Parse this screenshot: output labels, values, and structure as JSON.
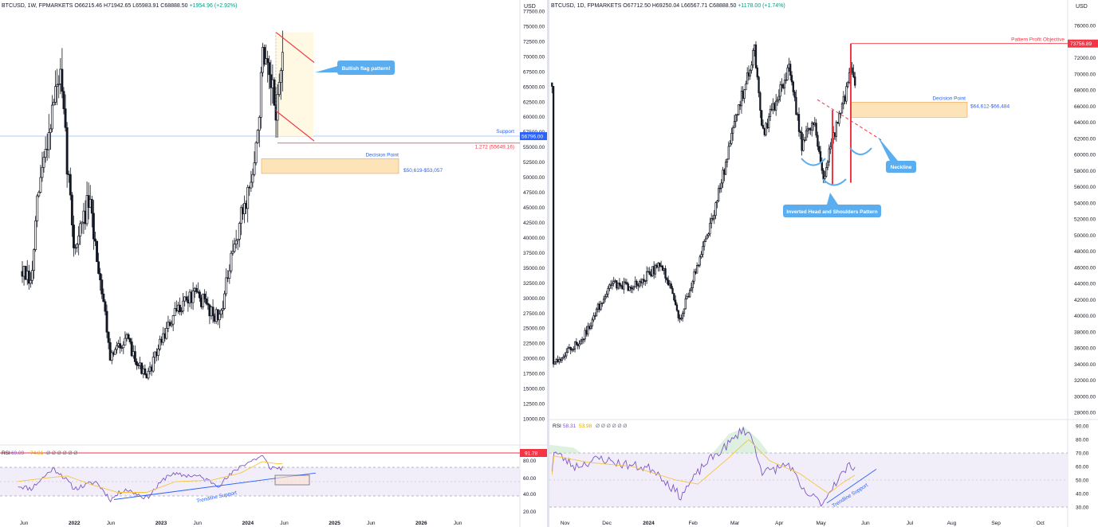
{
  "left": {
    "header": {
      "symbol": "BTCUSD, 1W, FPMARKETS",
      "open": "O66215.46",
      "high": "H71942.65",
      "low": "L65983.91",
      "close": "C68888.50",
      "change": "+1954.96 (+2.92%)"
    },
    "currency": "USD",
    "price_ticks": [
      77500,
      75000,
      72500,
      70000,
      67500,
      65000,
      62500,
      60000,
      57500,
      55000,
      52500,
      50000,
      47500,
      45000,
      42500,
      40000,
      37500,
      35000,
      32500,
      30000,
      27500,
      25000,
      22500,
      20000,
      17500,
      15000,
      12500,
      10000
    ],
    "price_tick_labels": [
      "77500.00",
      "75000.00",
      "72500.00",
      "70000.00",
      "67500.00",
      "65000.00",
      "62500.00",
      "60000.00",
      "57500.00",
      "55000.00",
      "52500.00",
      "50000.00",
      "47500.00",
      "45000.00",
      "42500.00",
      "40000.00",
      "37500.00",
      "35000.00",
      "32500.00",
      "30000.00",
      "27500.00",
      "25000.00",
      "22500.00",
      "20000.00",
      "17500.00",
      "15000.00",
      "12500.00",
      "10000.00"
    ],
    "x_labels": [
      "Jun",
      "2022",
      "Jun",
      "2023",
      "Jun",
      "2024",
      "Jun",
      "2025",
      "Jun",
      "2026",
      "Jun"
    ],
    "annotations": {
      "callout": "Bullish flag pattern!",
      "support_label": "Support",
      "support_price": "56796.00",
      "fib_label": "1.272 (55649.16)",
      "decision_label": "Decision Point",
      "decision_range": "$50,619-$53,057"
    },
    "rsi": {
      "header_label": "RSI",
      "header_rsi": "69.09",
      "header_ma": "74.81",
      "header_extra": "Ø Ø Ø Ø Ø Ø",
      "current_value": "91.78",
      "ticks": [
        80,
        60,
        40,
        20
      ],
      "tick_labels": [
        "80.00",
        "60.00",
        "40.00",
        "20.00"
      ],
      "trendline_label": "Trendline Support"
    }
  },
  "right": {
    "header": {
      "symbol": "BTCUSD, 1D, FPMARKETS",
      "open": "O67712.50",
      "high": "H69250.04",
      "low": "L66567.71",
      "close": "C68888.50",
      "change": "+1178.00 (+1.74%)"
    },
    "currency": "USD",
    "price_ticks": [
      76000,
      74000,
      72000,
      70000,
      68000,
      66000,
      64000,
      62000,
      60000,
      58000,
      56000,
      54000,
      52000,
      50000,
      48000,
      46000,
      44000,
      42000,
      40000,
      38000,
      36000,
      34000,
      32000,
      30000,
      28000
    ],
    "price_tick_labels": [
      "76000.00",
      "74000.00",
      "72000.00",
      "70000.00",
      "68000.00",
      "66000.00",
      "64000.00",
      "62000.00",
      "60000.00",
      "58000.00",
      "56000.00",
      "54000.00",
      "52000.00",
      "50000.00",
      "48000.00",
      "46000.00",
      "44000.00",
      "42000.00",
      "40000.00",
      "38000.00",
      "36000.00",
      "34000.00",
      "32000.00",
      "30000.00",
      "28000.00"
    ],
    "x_labels": [
      "Nov",
      "Dec",
      "2024",
      "Feb",
      "Mar",
      "Apr",
      "May",
      "Jun",
      "Jul",
      "Aug",
      "Sep",
      "Oct"
    ],
    "annotations": {
      "objective_label": "Pattern Profit Objective",
      "objective_price": "73756.89",
      "decision_label": "Decision Point",
      "decision_range": "$64,612-$66,484",
      "neckline": "Neckline",
      "pattern": "Inverted Head and Shoulders Pattern"
    },
    "rsi": {
      "header_label": "RSI",
      "header_rsi": "58.31",
      "header_ma": "53.98",
      "header_extra": "Ø Ø Ø Ø Ø Ø",
      "ticks": [
        90,
        80,
        70,
        60,
        50,
        40,
        30
      ],
      "tick_labels": [
        "90.00",
        "80.00",
        "70.00",
        "60.00",
        "50.00",
        "40.00",
        "30.00"
      ],
      "trendline_label": "Trendline Support"
    }
  },
  "colors": {
    "bull": "#131722",
    "bear": "#131722",
    "red": "#f23645",
    "blue_callout": "#5aaef0",
    "rsi_line": "#7e57c2",
    "rsi_ma": "#f5c542",
    "zone_fill": "#fde4b8",
    "zone_stroke": "#f0a04b",
    "label_blue": "#2962ff"
  },
  "chart_data": [
    {
      "type": "candlestick",
      "title": "",
      "timeframe": "1W",
      "ylim": [
        10000,
        77500
      ],
      "x_labels": [
        "Jun",
        "2022",
        "Jun",
        "2023",
        "Jun",
        "2024",
        "Jun",
        "2025",
        "Jun",
        "2026",
        "Jun"
      ],
      "path_close": [
        [
          "2021-05",
          36000
        ],
        [
          "2021-07",
          32000
        ],
        [
          "2021-08",
          47000
        ],
        [
          "2021-10",
          62000
        ],
        [
          "2021-11",
          67000
        ],
        [
          "2022-01",
          38000
        ],
        [
          "2022-03",
          46000
        ],
        [
          "2022-05",
          30000
        ],
        [
          "2022-06",
          20000
        ],
        [
          "2022-08",
          23500
        ],
        [
          "2022-11",
          16500
        ],
        [
          "2023-01",
          23000
        ],
        [
          "2023-04",
          29500
        ],
        [
          "2023-06",
          30500
        ],
        [
          "2023-09",
          26500
        ],
        [
          "2023-12",
          43000
        ],
        [
          "2024-02",
          52000
        ],
        [
          "2024-03",
          69000
        ],
        [
          "2024-05",
          61000
        ],
        [
          "2024-05-20",
          68888.5
        ]
      ],
      "levels": {
        "support": 56796.0,
        "fib_1_272": 55649.16,
        "decision_zone": [
          50619,
          53057
        ]
      },
      "rsi": {
        "last": 69.09,
        "ma": 74.81,
        "level_line": 91.78
      }
    },
    {
      "type": "candlestick",
      "title": "",
      "timeframe": "1D",
      "ylim": [
        28000,
        76000
      ],
      "x_labels": [
        "Nov",
        "Dec",
        "2024",
        "Feb",
        "Mar",
        "Apr",
        "May",
        "Jun",
        "Jul",
        "Aug",
        "Sep",
        "Oct"
      ],
      "path_close": [
        [
          "2023-10-25",
          34000
        ],
        [
          "2023-11-15",
          37000
        ],
        [
          "2023-12-05",
          44000
        ],
        [
          "2023-12-20",
          43500
        ],
        [
          "2024-01-10",
          46500
        ],
        [
          "2024-01-23",
          39500
        ],
        [
          "2024-02-15",
          52000
        ],
        [
          "2024-03-05",
          67000
        ],
        [
          "2024-03-14",
          73000
        ],
        [
          "2024-03-20",
          62500
        ],
        [
          "2024-04-08",
          71000
        ],
        [
          "2024-04-17",
          61000
        ],
        [
          "2024-04-25",
          64500
        ],
        [
          "2024-05-01",
          57000
        ],
        [
          "2024-05-08",
          62000
        ],
        [
          "2024-05-15",
          66000
        ],
        [
          "2024-05-21",
          71000
        ],
        [
          "2024-05-24",
          68888.5
        ]
      ],
      "levels": {
        "profit_objective": 73756.89,
        "decision_zone": [
          64612,
          66484
        ]
      },
      "rsi": {
        "last": 58.31,
        "ma": 53.98
      }
    }
  ]
}
